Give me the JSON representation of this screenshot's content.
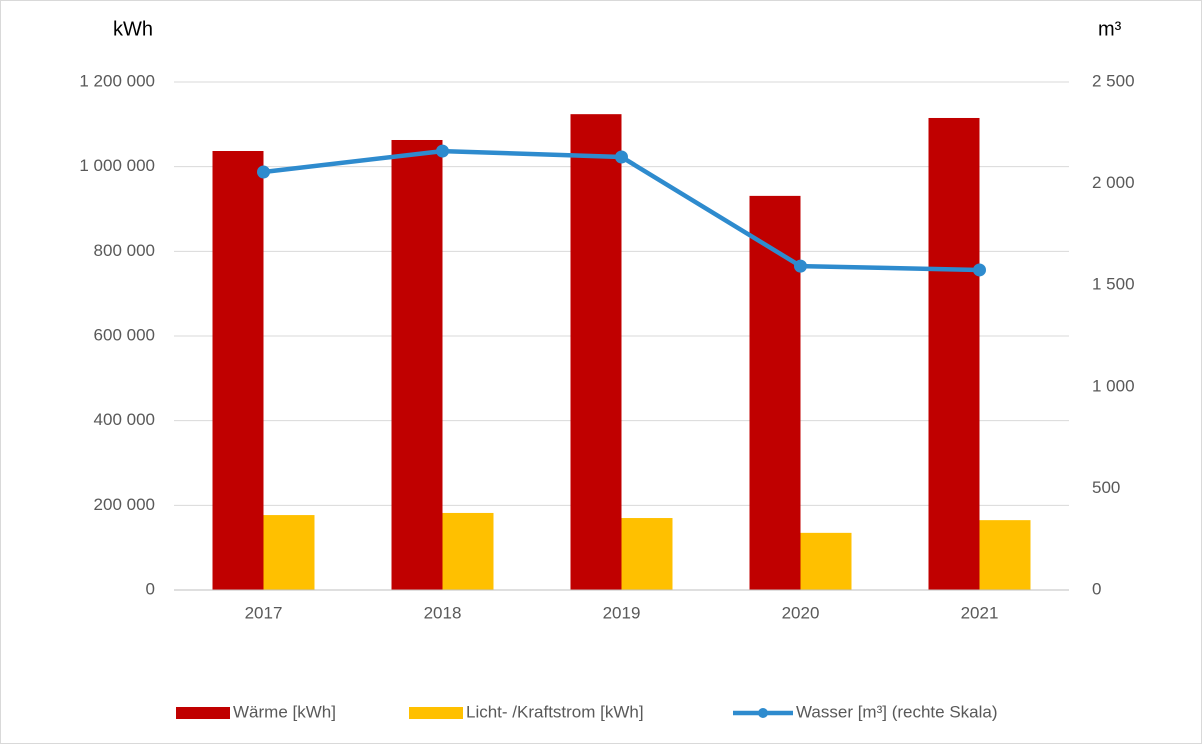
{
  "chart_data": {
    "type": "bar",
    "y_label": "kWh",
    "y2_label": "m³",
    "categories": [
      "2017",
      "2018",
      "2019",
      "2020",
      "2021"
    ],
    "series": [
      {
        "name": "Wärme [kWh]",
        "color": "#c00000",
        "values": [
          1037000,
          1063000,
          1124000,
          931000,
          1115000
        ]
      },
      {
        "name": "Licht- /Kraftstrom [kWh]",
        "color": "#ffc000",
        "values": [
          177000,
          182000,
          170000,
          135000,
          165000
        ]
      },
      {
        "name": "Wasser [m³] (rechte Skala)",
        "color": "#2e8bce",
        "type": "line",
        "axis": "y2",
        "values": [
          2057,
          2160,
          2131,
          1594,
          1575
        ]
      }
    ],
    "ylim": [
      0,
      1200000
    ],
    "yticks": [
      0,
      {
        "value": 200000,
        "label": "200 000"
      },
      {
        "value": 400000,
        "label": "400 000"
      },
      {
        "value": 600000,
        "label": "600 000"
      },
      {
        "value": 800000,
        "label": "800 000"
      },
      {
        "value": 1000000,
        "label": "1 000 000"
      },
      {
        "value": 1200000,
        "label": "1 200 000"
      }
    ],
    "y2lim": [
      0,
      2500
    ],
    "y2ticks": [
      0,
      500,
      {
        "value": 1000,
        "label": "1 000"
      },
      {
        "value": 1500,
        "label": "1 500"
      },
      {
        "value": 2000,
        "label": "2 000"
      },
      {
        "value": 2500,
        "label": "2 500"
      }
    ],
    "grid": true,
    "legend": "bottom"
  }
}
